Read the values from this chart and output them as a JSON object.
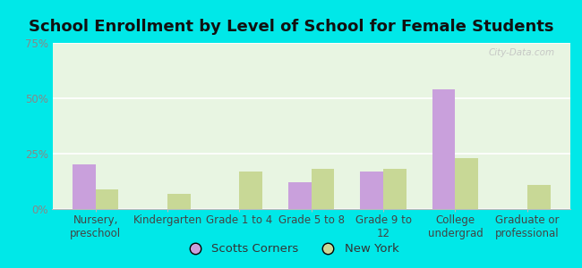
{
  "title": "School Enrollment by Level of School for Female Students",
  "categories": [
    "Nursery,\npreschool",
    "Kindergarten",
    "Grade 1 to 4",
    "Grade 5 to 8",
    "Grade 9 to\n12",
    "College\nundergrad",
    "Graduate or\nprofessional"
  ],
  "scotts_corners": [
    20,
    0,
    0,
    12,
    17,
    54,
    0
  ],
  "new_york": [
    9,
    7,
    17,
    18,
    18,
    23,
    11
  ],
  "scotts_color": "#c9a0dc",
  "new_york_color": "#c8d896",
  "background_outer": "#00e8e8",
  "background_inner": "#e8f5e2",
  "ylim": [
    0,
    75
  ],
  "yticks": [
    0,
    25,
    50,
    75
  ],
  "ytick_labels": [
    "0%",
    "25%",
    "50%",
    "75%"
  ],
  "legend_labels": [
    "Scotts Corners",
    "New York"
  ],
  "bar_width": 0.32,
  "title_fontsize": 13,
  "tick_fontsize": 8.5,
  "legend_fontsize": 9.5,
  "axis_color": "#888888",
  "watermark": "City-Data.com"
}
